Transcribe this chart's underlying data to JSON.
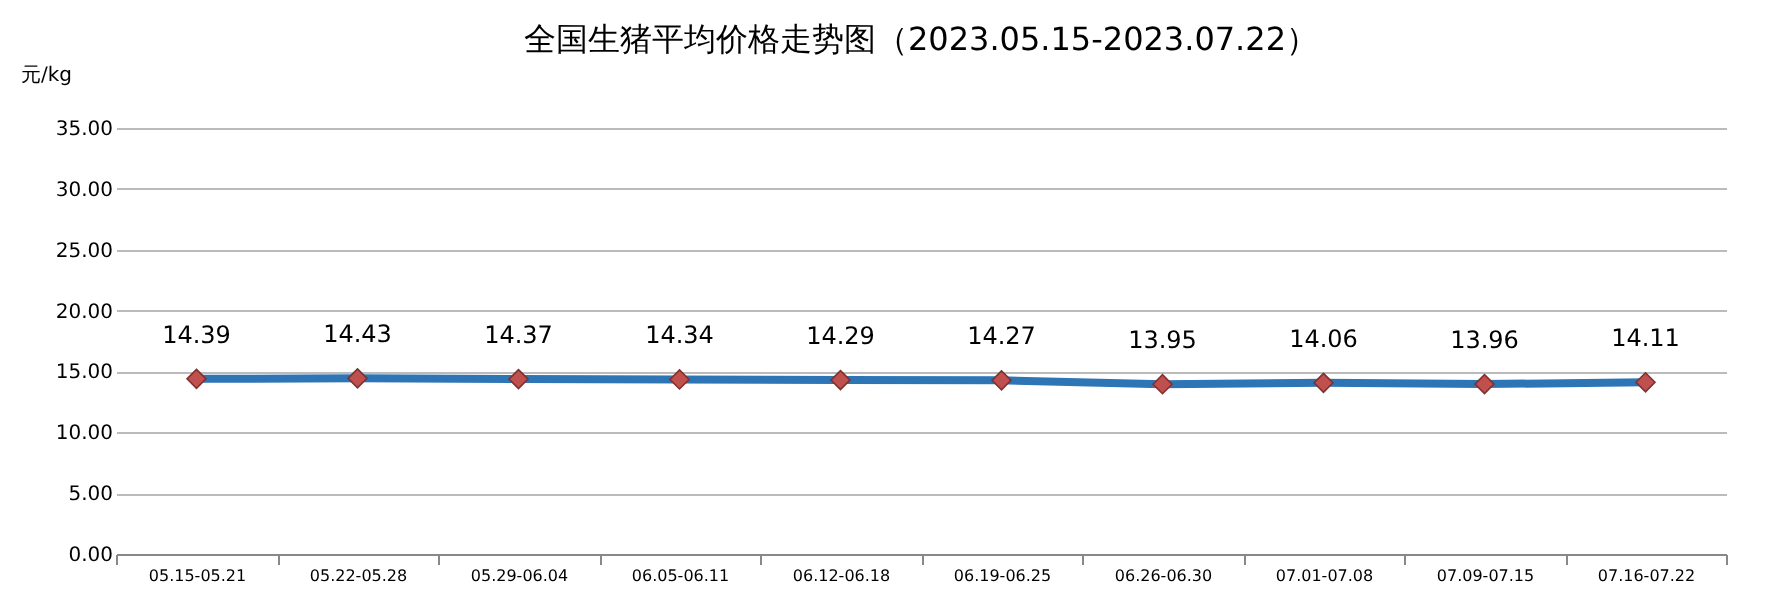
{
  "chart_data": {
    "type": "line",
    "title": "全国生猪平均价格走势图（2023.05.15-2023.07.22）",
    "ylabel": "元/kg",
    "categories": [
      "05.15-05.21",
      "05.22-05.28",
      "05.29-06.04",
      "06.05-06.11",
      "06.12-06.18",
      "06.19-06.25",
      "06.26-06.30",
      "07.01-07.08",
      "07.09-07.15",
      "07.16-07.22"
    ],
    "series": [
      {
        "color": "#2e75b6",
        "values": [
          14.39,
          14.43,
          14.37,
          14.34,
          14.29,
          14.27,
          13.95,
          14.06,
          13.96,
          14.11
        ]
      }
    ],
    "ylim": [
      0,
      35
    ],
    "yticks": [
      {
        "value": 0,
        "label": "0.00"
      },
      {
        "value": 5,
        "label": "5.00"
      },
      {
        "value": 10,
        "label": "10.00"
      },
      {
        "value": 15,
        "label": "15.00"
      },
      {
        "value": 20,
        "label": "20.00"
      },
      {
        "value": 25,
        "label": "25.00"
      },
      {
        "value": 30,
        "label": "30.00"
      },
      {
        "value": 35,
        "label": "35.00"
      }
    ],
    "grid": "y",
    "marker": "diamond",
    "line_style": "solid",
    "data_labels": true
  }
}
